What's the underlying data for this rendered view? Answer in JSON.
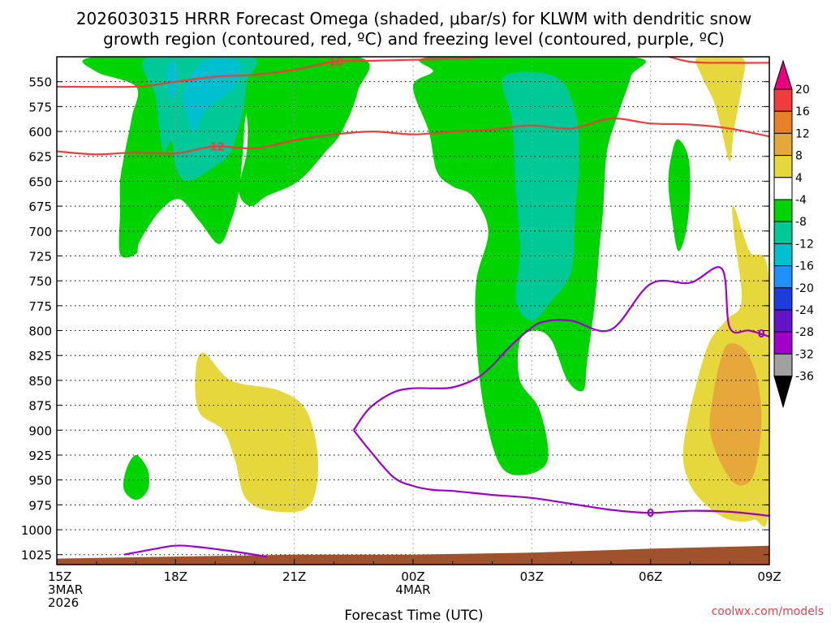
{
  "chart_data": {
    "type": "time-height contour",
    "title_line1": "2026030315 HRRR Forecast Omega (shaded, μbar/s) for KLWM with dendritic snow",
    "title_line2": "growth region (contoured, red, ºC) and freezing level (contoured, purple, ºC)",
    "xlabel": "Forecast Time (UTC)",
    "credit": "coolwx.com/models",
    "xlim": [
      0,
      18
    ],
    "ylim": [
      1035,
      525
    ],
    "y_ticks": [
      550,
      575,
      600,
      625,
      650,
      675,
      700,
      725,
      750,
      775,
      800,
      825,
      850,
      875,
      900,
      925,
      950,
      975,
      1000,
      1025
    ],
    "x_ticks": [
      {
        "x": 0,
        "lines": [
          "15Z",
          "3MAR",
          "2026"
        ]
      },
      {
        "x": 3,
        "lines": [
          "18Z"
        ]
      },
      {
        "x": 6,
        "lines": [
          "21Z"
        ]
      },
      {
        "x": 9,
        "lines": [
          "00Z",
          "4MAR"
        ]
      },
      {
        "x": 12,
        "lines": [
          "03Z"
        ]
      },
      {
        "x": 15,
        "lines": [
          "06Z"
        ]
      },
      {
        "x": 18,
        "lines": [
          "09Z"
        ]
      }
    ],
    "colorbar": {
      "labels": [
        "20",
        "16",
        "12",
        "8",
        "4",
        "-4",
        "-8",
        "-12",
        "-16",
        "-20",
        "-24",
        "-28",
        "-32",
        "-36"
      ],
      "colors": {
        "above_20": "#e6007e",
        "16_20": "#f03c3c",
        "12_16": "#e8802a",
        "8_12": "#e6a83a",
        "4_8": "#e6d83c",
        "neg4_4": "#ffffff",
        "neg8_neg4": "#00d400",
        "neg12_neg8": "#00c896",
        "neg16_neg12": "#00c0d0",
        "neg20_neg16": "#1e90ff",
        "neg24_neg20": "#1e3cdc",
        "neg28_neg24": "#6414c8",
        "neg32_neg28": "#a000c8",
        "neg36_neg32": "#a0a0a0",
        "below_neg36": "#000000"
      }
    },
    "omega_regions": [
      {
        "level": "-8 to -4",
        "color": "#00d400",
        "outline": [
          [
            1.0,
            525
          ],
          [
            5.2,
            525
          ],
          [
            5.2,
            545
          ],
          [
            4.8,
            580
          ],
          [
            4.7,
            620
          ],
          [
            4.6,
            660
          ],
          [
            4.4,
            690
          ],
          [
            4.1,
            713
          ],
          [
            3.6,
            690
          ],
          [
            3.1,
            668
          ],
          [
            2.6,
            680
          ],
          [
            2.1,
            710
          ],
          [
            2.0,
            723
          ],
          [
            1.6,
            723
          ],
          [
            1.6,
            680
          ],
          [
            1.6,
            650
          ],
          [
            1.7,
            625
          ],
          [
            1.9,
            585
          ],
          [
            2.0,
            555
          ],
          [
            1.0,
            540
          ]
        ]
      },
      {
        "level": "-8 to -4",
        "color": "#00d400",
        "outline": [
          [
            3.7,
            525
          ],
          [
            7.6,
            525
          ],
          [
            7.6,
            560
          ],
          [
            7.2,
            600
          ],
          [
            6.8,
            620
          ],
          [
            6.1,
            650
          ],
          [
            5.3,
            665
          ],
          [
            4.9,
            675
          ],
          [
            4.6,
            660
          ],
          [
            4.8,
            620
          ],
          [
            4.8,
            585
          ],
          [
            4.6,
            555
          ],
          [
            4.0,
            540
          ]
        ]
      },
      {
        "level": "-8 to -4",
        "color": "#00d400",
        "outline": [
          [
            9.5,
            525
          ],
          [
            14.5,
            525
          ],
          [
            14.5,
            545
          ],
          [
            14.2,
            580
          ],
          [
            13.9,
            620
          ],
          [
            13.8,
            680
          ],
          [
            13.7,
            720
          ],
          [
            13.6,
            770
          ],
          [
            13.4,
            830
          ],
          [
            13.3,
            860
          ],
          [
            12.9,
            850
          ],
          [
            12.5,
            810
          ],
          [
            12.1,
            800
          ],
          [
            11.7,
            810
          ],
          [
            11.7,
            850
          ],
          [
            12.2,
            880
          ],
          [
            12.4,
            930
          ],
          [
            11.8,
            945
          ],
          [
            11.2,
            935
          ],
          [
            10.8,
            880
          ],
          [
            10.6,
            810
          ],
          [
            10.6,
            750
          ],
          [
            10.9,
            700
          ],
          [
            10.5,
            665
          ],
          [
            10.0,
            655
          ],
          [
            9.6,
            640
          ],
          [
            9.4,
            600
          ],
          [
            9.0,
            555
          ],
          [
            9.5,
            540
          ]
        ]
      },
      {
        "level": "-8 to -4",
        "color": "#00d400",
        "outline": [
          [
            15.7,
            608
          ],
          [
            15.95,
            625
          ],
          [
            16.0,
            660
          ],
          [
            15.9,
            700
          ],
          [
            15.7,
            720
          ],
          [
            15.55,
            690
          ],
          [
            15.45,
            650
          ],
          [
            15.55,
            620
          ]
        ]
      },
      {
        "level": "-8 to -4",
        "color": "#00d400",
        "outline": [
          [
            2.0,
            925
          ],
          [
            2.3,
            940
          ],
          [
            2.3,
            960
          ],
          [
            2.0,
            970
          ],
          [
            1.7,
            960
          ],
          [
            1.75,
            940
          ]
        ]
      },
      {
        "level": "-12 to -8",
        "color": "#00c896",
        "outline": [
          [
            2.3,
            525
          ],
          [
            4.9,
            525
          ],
          [
            4.8,
            550
          ],
          [
            4.7,
            580
          ],
          [
            4.4,
            620
          ],
          [
            4.0,
            635
          ],
          [
            3.3,
            650
          ],
          [
            3.0,
            635
          ],
          [
            2.9,
            610
          ],
          [
            2.7,
            620
          ],
          [
            2.6,
            600
          ],
          [
            2.5,
            565
          ]
        ]
      },
      {
        "level": "-12 to -8",
        "color": "#00c896",
        "outline": [
          [
            11.3,
            545
          ],
          [
            12.6,
            545
          ],
          [
            13.1,
            580
          ],
          [
            13.2,
            630
          ],
          [
            13.1,
            680
          ],
          [
            13.0,
            740
          ],
          [
            12.5,
            770
          ],
          [
            12.0,
            790
          ],
          [
            11.6,
            770
          ],
          [
            11.7,
            720
          ],
          [
            11.6,
            660
          ],
          [
            11.5,
            590
          ]
        ]
      },
      {
        "level": "-16 to -12",
        "color": "#00c0d0",
        "outline": [
          [
            3.7,
            530
          ],
          [
            4.6,
            530
          ],
          [
            4.5,
            555
          ],
          [
            4.1,
            568
          ],
          [
            3.7,
            582
          ],
          [
            3.5,
            600
          ],
          [
            3.3,
            585
          ],
          [
            3.2,
            560
          ]
        ]
      },
      {
        "level": "-16 to -12",
        "color": "#00c0d0",
        "outline": [
          [
            2.8,
            535
          ],
          [
            3.0,
            530
          ],
          [
            3.05,
            555
          ],
          [
            2.9,
            568
          ],
          [
            2.8,
            555
          ]
        ]
      },
      {
        "level": "4 to 8",
        "color": "#e6d83c",
        "outline": [
          [
            3.7,
            822
          ],
          [
            4.4,
            850
          ],
          [
            5.6,
            860
          ],
          [
            6.3,
            880
          ],
          [
            6.6,
            930
          ],
          [
            6.4,
            975
          ],
          [
            5.6,
            982
          ],
          [
            4.8,
            970
          ],
          [
            4.5,
            930
          ],
          [
            4.2,
            900
          ],
          [
            3.6,
            882
          ],
          [
            3.5,
            845
          ]
        ]
      },
      {
        "level": "4 to 8",
        "color": "#e6d83c",
        "outline": [
          [
            16.2,
            525
          ],
          [
            17.3,
            525
          ],
          [
            17.3,
            555
          ],
          [
            17.1,
            600
          ],
          [
            17.0,
            630
          ],
          [
            16.8,
            600
          ],
          [
            16.6,
            570
          ],
          [
            16.3,
            545
          ]
        ]
      },
      {
        "level": "4 to 8",
        "color": "#e6d83c",
        "outline": [
          [
            18.0,
            750
          ],
          [
            18.0,
            975
          ],
          [
            17.6,
            990
          ],
          [
            17.0,
            990
          ],
          [
            16.4,
            975
          ],
          [
            15.95,
            950
          ],
          [
            15.85,
            910
          ],
          [
            16.4,
            820
          ],
          [
            16.9,
            790
          ],
          [
            17.3,
            770
          ],
          [
            17.1,
            700
          ],
          [
            17.1,
            675
          ],
          [
            17.5,
            720
          ]
        ]
      },
      {
        "level": "8 to 12",
        "color": "#e6a83a",
        "outline": [
          [
            17.0,
            813
          ],
          [
            17.4,
            820
          ],
          [
            17.7,
            850
          ],
          [
            17.8,
            895
          ],
          [
            17.6,
            945
          ],
          [
            17.2,
            955
          ],
          [
            16.8,
            935
          ],
          [
            16.5,
            900
          ],
          [
            16.6,
            860
          ],
          [
            16.8,
            825
          ]
        ]
      }
    ],
    "red_contours": [
      {
        "label": "-18",
        "label_at": [
          7.0,
          530
        ],
        "points": [
          [
            0,
            555
          ],
          [
            2,
            555
          ],
          [
            3,
            550
          ],
          [
            4,
            545
          ],
          [
            5,
            543
          ],
          [
            6,
            538
          ],
          [
            7,
            530
          ],
          [
            8,
            529
          ],
          [
            9,
            528
          ],
          [
            10,
            527
          ],
          [
            11,
            525
          ],
          [
            12,
            524
          ],
          [
            13,
            523
          ],
          [
            14,
            523
          ],
          [
            15,
            521
          ],
          [
            16,
            530
          ],
          [
            17,
            531
          ],
          [
            18,
            531
          ]
        ]
      },
      {
        "label": "-12",
        "label_at": [
          4.0,
          615
        ],
        "points": [
          [
            0,
            620
          ],
          [
            1,
            623
          ],
          [
            2,
            621
          ],
          [
            3,
            622
          ],
          [
            4,
            615
          ],
          [
            5,
            617
          ],
          [
            6,
            609
          ],
          [
            7,
            603
          ],
          [
            8,
            600
          ],
          [
            9,
            603
          ],
          [
            10,
            600
          ],
          [
            11,
            598
          ],
          [
            12,
            594
          ],
          [
            13,
            597
          ],
          [
            14,
            587
          ],
          [
            15,
            592
          ],
          [
            16,
            593
          ],
          [
            17,
            597
          ],
          [
            18,
            605
          ]
        ]
      }
    ],
    "purple_contours": [
      {
        "label": "0",
        "label_at": [
          15.0,
          983
        ],
        "points": [
          [
            7.5,
            900
          ],
          [
            7.9,
            878
          ],
          [
            8.5,
            862
          ],
          [
            9.0,
            858
          ],
          [
            9.5,
            858
          ],
          [
            10.0,
            857
          ],
          [
            10.6,
            848
          ],
          [
            11.0,
            835
          ],
          [
            11.4,
            818
          ],
          [
            11.9,
            800
          ],
          [
            12.3,
            791
          ],
          [
            13.0,
            790
          ],
          [
            14.0,
            799
          ],
          [
            15.0,
            753
          ],
          [
            16.0,
            752
          ],
          [
            16.8,
            738
          ],
          [
            17.0,
            797
          ],
          [
            17.5,
            800
          ],
          [
            18.0,
            806
          ]
        ]
      },
      {
        "label": "0",
        "label_at": [
          17.8,
          803
        ],
        "points": [
          [
            7.5,
            900
          ],
          [
            7.9,
            920
          ],
          [
            8.5,
            947
          ],
          [
            9.0,
            956
          ],
          [
            9.5,
            960
          ],
          [
            10.0,
            961
          ],
          [
            11.0,
            965
          ],
          [
            12.0,
            968
          ],
          [
            13.0,
            974
          ],
          [
            14.0,
            980
          ],
          [
            15.0,
            983
          ],
          [
            16.0,
            981
          ],
          [
            17.0,
            982
          ],
          [
            18.0,
            986
          ]
        ]
      },
      {
        "label": "",
        "label_at": null,
        "points": [
          [
            1.7,
            1025
          ],
          [
            2.5,
            1019
          ],
          [
            3.0,
            1016
          ],
          [
            3.5,
            1017
          ],
          [
            4.5,
            1022
          ],
          [
            5.3,
            1027
          ]
        ]
      }
    ],
    "terrain_surface": [
      [
        0,
        1029
      ],
      [
        6,
        1025
      ],
      [
        9,
        1025
      ],
      [
        12,
        1023
      ],
      [
        15,
        1019
      ],
      [
        18,
        1016
      ]
    ]
  }
}
